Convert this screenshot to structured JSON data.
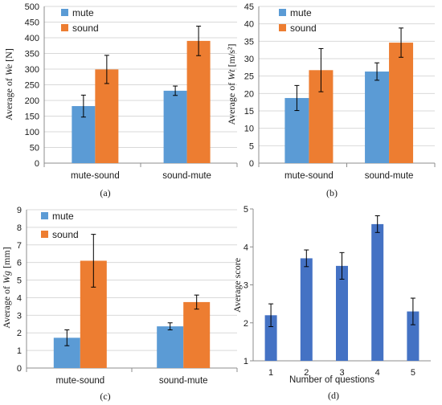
{
  "colors": {
    "mute": "#5b9bd5",
    "sound": "#ed7d31",
    "score": "#4472c4"
  },
  "chart_data": [
    {
      "type": "bar",
      "caption": "(a)",
      "ylabel_prefix": "Average of ",
      "ylabel_var": "We",
      "ylabel_unit": " [N]",
      "categories": [
        "mute-sound",
        "sound-mute"
      ],
      "ylim": [
        0,
        500
      ],
      "yticks": [
        "0",
        "50",
        "100",
        "150",
        "200",
        "250",
        "300",
        "350",
        "400",
        "450",
        "500"
      ],
      "legend": "top-left",
      "grid": true,
      "series": [
        {
          "name": "mute",
          "values": [
            182,
            231
          ],
          "errors": [
            35,
            15
          ]
        },
        {
          "name": "sound",
          "values": [
            299,
            390
          ],
          "errors": [
            45,
            47
          ]
        }
      ]
    },
    {
      "type": "bar",
      "caption": "(b)",
      "ylabel_prefix": "Average of ",
      "ylabel_var": "Wt",
      "ylabel_unit": " [m/s²]",
      "categories": [
        "mute-sound",
        "sound-mute"
      ],
      "ylim": [
        0,
        45
      ],
      "yticks": [
        "0",
        "5",
        "10",
        "15",
        "20",
        "25",
        "30",
        "35",
        "40",
        "45"
      ],
      "legend": "top-left",
      "grid": true,
      "series": [
        {
          "name": "mute",
          "values": [
            18.7,
            26.3
          ],
          "errors": [
            3.6,
            2.5
          ]
        },
        {
          "name": "sound",
          "values": [
            26.7,
            34.6
          ],
          "errors": [
            6.2,
            4.2
          ]
        }
      ]
    },
    {
      "type": "bar",
      "caption": "(c)",
      "ylabel_prefix": "Average of ",
      "ylabel_var": "Wg",
      "ylabel_unit": " [mm]",
      "categories": [
        "mute-sound",
        "sound-mute"
      ],
      "ylim": [
        0,
        9
      ],
      "yticks": [
        "0",
        "1",
        "2",
        "3",
        "4",
        "5",
        "6",
        "7",
        "8",
        "9"
      ],
      "legend": "top-left",
      "grid": true,
      "series": [
        {
          "name": "mute",
          "values": [
            1.72,
            2.37
          ],
          "errors": [
            0.45,
            0.2
          ]
        },
        {
          "name": "sound",
          "values": [
            6.1,
            3.75
          ],
          "errors": [
            1.5,
            0.4
          ]
        }
      ]
    },
    {
      "type": "bar",
      "caption": "(d)",
      "ylabel": "Average score",
      "xlabel": "Number of questions",
      "categories": [
        "1",
        "2",
        "3",
        "4",
        "5"
      ],
      "ylim": [
        1,
        5
      ],
      "yticks": [
        "1",
        "2",
        "3",
        "4",
        "5"
      ],
      "grid": false,
      "series": [
        {
          "name": "",
          "values": [
            2.2,
            3.7,
            3.5,
            4.6,
            2.3
          ],
          "errors": [
            0.3,
            0.22,
            0.35,
            0.22,
            0.35
          ]
        }
      ]
    }
  ]
}
